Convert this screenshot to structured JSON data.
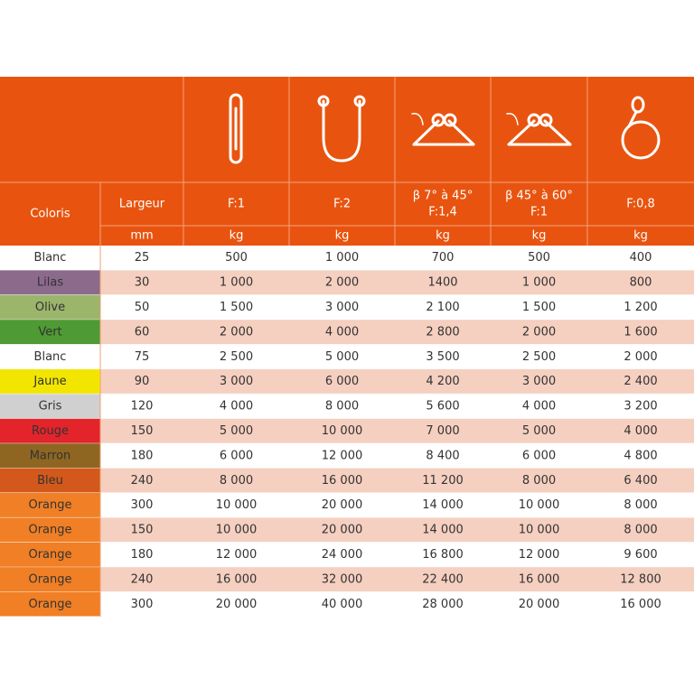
{
  "header": {
    "coloris": "Coloris",
    "largeur": "Largeur",
    "loads": [
      [
        "F:1"
      ],
      [
        "F:2"
      ],
      [
        "β  7° à 45°",
        "F:1,4"
      ],
      [
        "β 45° à 60°",
        "F:1"
      ],
      [
        "F:0,8"
      ]
    ],
    "units": [
      "mm",
      "kg",
      "kg",
      "kg",
      "kg",
      "kg"
    ]
  },
  "table": {
    "rows": [
      {
        "label": "Blanc",
        "color": "#ffffff",
        "cells": [
          "25",
          "500",
          "1 000",
          "700",
          "500",
          "400"
        ]
      },
      {
        "label": "Lilas",
        "color": "#8c6a8c",
        "cells": [
          "30",
          "1 000",
          "2 000",
          "1400",
          "1 000",
          "800"
        ]
      },
      {
        "label": "Olive",
        "color": "#9bb56b",
        "cells": [
          "50",
          "1 500",
          "3 000",
          "2 100",
          "1 500",
          "1 200"
        ]
      },
      {
        "label": "Vert",
        "color": "#4e9a34",
        "cells": [
          "60",
          "2 000",
          "4 000",
          "2 800",
          "2 000",
          "1 600"
        ]
      },
      {
        "label": "Blanc",
        "color": "#ffffff",
        "cells": [
          "75",
          "2 500",
          "5 000",
          "3 500",
          "2 500",
          "2 000"
        ]
      },
      {
        "label": "Jaune",
        "color": "#f2e600",
        "cells": [
          "90",
          "3 000",
          "6 000",
          "4 200",
          "3 000",
          "2 400"
        ]
      },
      {
        "label": "Gris",
        "color": "#d0d0d0",
        "cells": [
          "120",
          "4 000",
          "8 000",
          "5 600",
          "4 000",
          "3 200"
        ]
      },
      {
        "label": "Rouge",
        "color": "#e3242b",
        "cells": [
          "150",
          "5 000",
          "10 000",
          "7 000",
          "5 000",
          "4 000"
        ]
      },
      {
        "label": "Marron",
        "color": "#8e6622",
        "cells": [
          "180",
          "6 000",
          "12 000",
          "8 400",
          "6 000",
          "4 800"
        ]
      },
      {
        "label": "Bleu",
        "color": "#d2591b",
        "cells": [
          "240",
          "8 000",
          "16 000",
          "11 200",
          "8 000",
          "6 400"
        ]
      },
      {
        "label": "Orange",
        "color": "#f07f25",
        "cells": [
          "300",
          "10 000",
          "20 000",
          "14 000",
          "10 000",
          "8 000"
        ]
      },
      {
        "label": "Orange",
        "color": "#f07f25",
        "cells": [
          "150",
          "10 000",
          "20 000",
          "14 000",
          "10 000",
          "8 000"
        ]
      },
      {
        "label": "Orange",
        "color": "#f07f25",
        "cells": [
          "180",
          "12 000",
          "24 000",
          "16 800",
          "12 000",
          "9 600"
        ]
      },
      {
        "label": "Orange",
        "color": "#f07f25",
        "cells": [
          "240",
          "16 000",
          "32 000",
          "22 400",
          "16 000",
          "12 800"
        ]
      },
      {
        "label": "Orange",
        "color": "#f07f25",
        "cells": [
          "300",
          "20 000",
          "40 000",
          "28 000",
          "20 000",
          "16 000"
        ]
      }
    ]
  }
}
